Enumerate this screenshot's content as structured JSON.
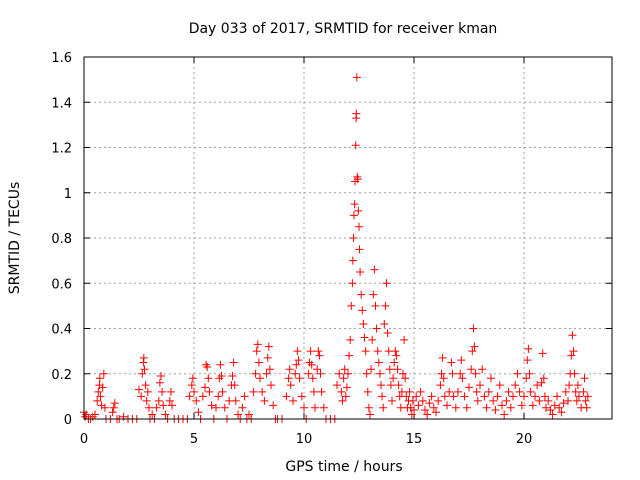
{
  "chart_data": {
    "type": "scatter",
    "title": "Day 033 of 2017, SRMTID for receiver kman",
    "xlabel": "GPS time / hours",
    "ylabel": "SRMTID / TECUs",
    "xlim": [
      0,
      24
    ],
    "ylim": [
      0,
      1.6
    ],
    "xticks": [
      0,
      5,
      10,
      15,
      20
    ],
    "xtick_labels": [
      "0",
      "5",
      "10",
      "15",
      "20"
    ],
    "yticks": [
      0,
      0.2,
      0.4,
      0.6,
      0.8,
      1.0,
      1.2,
      1.4,
      1.6
    ],
    "ytick_labels": [
      "0",
      "0.2",
      "0.4",
      "0.6",
      "0.8",
      "1",
      "1.2",
      "1.4",
      "1.6"
    ],
    "grid": true,
    "marker": "plus",
    "color": "#ff0000",
    "series": [
      {
        "name": "SRMTID",
        "points": [
          [
            0.0,
            0.03
          ],
          [
            0.05,
            0.01
          ],
          [
            0.1,
            0.02
          ],
          [
            0.2,
            0.0
          ],
          [
            0.3,
            0.0
          ],
          [
            0.4,
            0.01
          ],
          [
            0.5,
            0.02
          ],
          [
            0.6,
            0.08
          ],
          [
            0.65,
            0.12
          ],
          [
            0.7,
            0.15
          ],
          [
            0.72,
            0.18
          ],
          [
            0.75,
            0.1
          ],
          [
            0.8,
            0.06
          ],
          [
            0.85,
            0.14
          ],
          [
            0.9,
            0.2
          ],
          [
            0.95,
            0.05
          ],
          [
            1.0,
            0.0
          ],
          [
            1.2,
            0.0
          ],
          [
            1.3,
            0.03
          ],
          [
            1.35,
            0.05
          ],
          [
            1.4,
            0.07
          ],
          [
            1.5,
            0.0
          ],
          [
            1.6,
            0.0
          ],
          [
            1.8,
            0.01
          ],
          [
            2.0,
            0.0
          ],
          [
            2.2,
            0.0
          ],
          [
            2.4,
            0.0
          ],
          [
            2.5,
            0.13
          ],
          [
            2.6,
            0.1
          ],
          [
            2.65,
            0.2
          ],
          [
            2.7,
            0.25
          ],
          [
            2.72,
            0.27
          ],
          [
            2.75,
            0.22
          ],
          [
            2.8,
            0.15
          ],
          [
            2.85,
            0.08
          ],
          [
            2.9,
            0.12
          ],
          [
            2.95,
            0.05
          ],
          [
            3.0,
            0.0
          ],
          [
            3.1,
            0.02
          ],
          [
            3.2,
            0.0
          ],
          [
            3.3,
            0.05
          ],
          [
            3.4,
            0.08
          ],
          [
            3.45,
            0.16
          ],
          [
            3.5,
            0.19
          ],
          [
            3.55,
            0.12
          ],
          [
            3.6,
            0.06
          ],
          [
            3.7,
            0.02
          ],
          [
            3.8,
            0.0
          ],
          [
            3.9,
            0.08
          ],
          [
            3.95,
            0.12
          ],
          [
            4.0,
            0.06
          ],
          [
            4.1,
            0.0
          ],
          [
            4.3,
            0.0
          ],
          [
            4.5,
            0.0
          ],
          [
            4.7,
            0.0
          ],
          [
            4.8,
            0.1
          ],
          [
            4.9,
            0.15
          ],
          [
            4.95,
            0.18
          ],
          [
            5.0,
            0.12
          ],
          [
            5.1,
            0.08
          ],
          [
            5.2,
            0.03
          ],
          [
            5.3,
            0.0
          ],
          [
            5.4,
            0.1
          ],
          [
            5.5,
            0.14
          ],
          [
            5.55,
            0.24
          ],
          [
            5.6,
            0.23
          ],
          [
            5.65,
            0.18
          ],
          [
            5.7,
            0.12
          ],
          [
            5.8,
            0.06
          ],
          [
            5.9,
            0.0
          ],
          [
            6.0,
            0.05
          ],
          [
            6.1,
            0.1
          ],
          [
            6.15,
            0.18
          ],
          [
            6.2,
            0.24
          ],
          [
            6.25,
            0.19
          ],
          [
            6.3,
            0.12
          ],
          [
            6.4,
            0.05
          ],
          [
            6.5,
            0.0
          ],
          [
            6.6,
            0.08
          ],
          [
            6.7,
            0.15
          ],
          [
            6.75,
            0.19
          ],
          [
            6.8,
            0.25
          ],
          [
            6.85,
            0.15
          ],
          [
            6.9,
            0.08
          ],
          [
            7.0,
            0.02
          ],
          [
            7.1,
            0.0
          ],
          [
            7.2,
            0.05
          ],
          [
            7.3,
            0.1
          ],
          [
            7.4,
            0.0
          ],
          [
            7.5,
            0.02
          ],
          [
            7.6,
            0.0
          ],
          [
            7.7,
            0.12
          ],
          [
            7.8,
            0.2
          ],
          [
            7.85,
            0.3
          ],
          [
            7.9,
            0.33
          ],
          [
            7.95,
            0.25
          ],
          [
            8.0,
            0.18
          ],
          [
            8.1,
            0.12
          ],
          [
            8.2,
            0.08
          ],
          [
            8.3,
            0.2
          ],
          [
            8.35,
            0.27
          ],
          [
            8.4,
            0.32
          ],
          [
            8.45,
            0.22
          ],
          [
            8.5,
            0.15
          ],
          [
            8.6,
            0.06
          ],
          [
            8.7,
            0.0
          ],
          [
            8.8,
            0.0
          ],
          [
            9.0,
            0.0
          ],
          [
            9.2,
            0.1
          ],
          [
            9.3,
            0.18
          ],
          [
            9.35,
            0.22
          ],
          [
            9.4,
            0.15
          ],
          [
            9.5,
            0.08
          ],
          [
            9.6,
            0.2
          ],
          [
            9.65,
            0.24
          ],
          [
            9.7,
            0.3
          ],
          [
            9.75,
            0.26
          ],
          [
            9.8,
            0.18
          ],
          [
            9.9,
            0.1
          ],
          [
            10.0,
            0.05
          ],
          [
            10.1,
            0.0
          ],
          [
            10.2,
            0.2
          ],
          [
            10.25,
            0.25
          ],
          [
            10.3,
            0.3
          ],
          [
            10.35,
            0.24
          ],
          [
            10.4,
            0.18
          ],
          [
            10.45,
            0.12
          ],
          [
            10.5,
            0.05
          ],
          [
            10.6,
            0.22
          ],
          [
            10.65,
            0.3
          ],
          [
            10.7,
            0.28
          ],
          [
            10.75,
            0.2
          ],
          [
            10.8,
            0.12
          ],
          [
            10.9,
            0.05
          ],
          [
            11.0,
            0.0
          ],
          [
            11.2,
            0.0
          ],
          [
            11.4,
            0.0
          ],
          [
            11.5,
            0.15
          ],
          [
            11.6,
            0.2
          ],
          [
            11.7,
            0.12
          ],
          [
            11.75,
            0.08
          ],
          [
            11.8,
            0.18
          ],
          [
            11.85,
            0.22
          ],
          [
            11.9,
            0.1
          ],
          [
            11.95,
            0.14
          ],
          [
            12.0,
            0.2
          ],
          [
            12.05,
            0.28
          ],
          [
            12.1,
            0.35
          ],
          [
            12.15,
            0.5
          ],
          [
            12.2,
            0.6
          ],
          [
            12.22,
            0.7
          ],
          [
            12.25,
            0.8
          ],
          [
            12.27,
            0.9
          ],
          [
            12.3,
            0.95
          ],
          [
            12.32,
            1.05
          ],
          [
            12.35,
            1.21
          ],
          [
            12.37,
            1.33
          ],
          [
            12.38,
            1.35
          ],
          [
            12.4,
            1.51
          ],
          [
            12.42,
            1.07
          ],
          [
            12.45,
            1.06
          ],
          [
            12.47,
            0.92
          ],
          [
            12.5,
            0.85
          ],
          [
            12.52,
            0.75
          ],
          [
            12.55,
            0.65
          ],
          [
            12.6,
            0.55
          ],
          [
            12.65,
            0.48
          ],
          [
            12.7,
            0.42
          ],
          [
            12.75,
            0.36
          ],
          [
            12.8,
            0.3
          ],
          [
            12.85,
            0.2
          ],
          [
            12.9,
            0.12
          ],
          [
            12.95,
            0.05
          ],
          [
            13.0,
            0.02
          ],
          [
            13.05,
            0.22
          ],
          [
            13.1,
            0.35
          ],
          [
            13.15,
            0.55
          ],
          [
            13.2,
            0.66
          ],
          [
            13.25,
            0.5
          ],
          [
            13.3,
            0.4
          ],
          [
            13.35,
            0.3
          ],
          [
            13.4,
            0.25
          ],
          [
            13.45,
            0.2
          ],
          [
            13.5,
            0.15
          ],
          [
            13.55,
            0.1
          ],
          [
            13.6,
            0.05
          ],
          [
            13.65,
            0.42
          ],
          [
            13.7,
            0.5
          ],
          [
            13.75,
            0.6
          ],
          [
            13.8,
            0.38
          ],
          [
            13.85,
            0.3
          ],
          [
            13.9,
            0.22
          ],
          [
            13.95,
            0.15
          ],
          [
            14.0,
            0.08
          ],
          [
            14.05,
            0.18
          ],
          [
            14.1,
            0.25
          ],
          [
            14.15,
            0.3
          ],
          [
            14.2,
            0.28
          ],
          [
            14.25,
            0.22
          ],
          [
            14.3,
            0.15
          ],
          [
            14.35,
            0.1
          ],
          [
            14.4,
            0.05
          ],
          [
            14.45,
            0.12
          ],
          [
            14.5,
            0.2
          ],
          [
            14.55,
            0.35
          ],
          [
            14.6,
            0.18
          ],
          [
            14.65,
            0.1
          ],
          [
            14.7,
            0.05
          ],
          [
            14.75,
            0.08
          ],
          [
            14.8,
            0.12
          ],
          [
            14.85,
            0.05
          ],
          [
            14.9,
            0.02
          ],
          [
            14.95,
            0.08
          ],
          [
            15.0,
            0.04
          ],
          [
            15.1,
            0.1
          ],
          [
            15.2,
            0.06
          ],
          [
            15.3,
            0.12
          ],
          [
            15.4,
            0.08
          ],
          [
            15.5,
            0.04
          ],
          [
            15.6,
            0.02
          ],
          [
            15.7,
            0.07
          ],
          [
            15.8,
            0.1
          ],
          [
            15.9,
            0.05
          ],
          [
            16.0,
            0.03
          ],
          [
            16.1,
            0.08
          ],
          [
            16.2,
            0.15
          ],
          [
            16.25,
            0.2
          ],
          [
            16.3,
            0.27
          ],
          [
            16.35,
            0.18
          ],
          [
            16.4,
            0.1
          ],
          [
            16.5,
            0.06
          ],
          [
            16.6,
            0.12
          ],
          [
            16.7,
            0.25
          ],
          [
            16.75,
            0.2
          ],
          [
            16.8,
            0.1
          ],
          [
            16.9,
            0.05
          ],
          [
            17.0,
            0.12
          ],
          [
            17.1,
            0.2
          ],
          [
            17.15,
            0.26
          ],
          [
            17.2,
            0.18
          ],
          [
            17.3,
            0.1
          ],
          [
            17.4,
            0.05
          ],
          [
            17.5,
            0.14
          ],
          [
            17.6,
            0.22
          ],
          [
            17.65,
            0.3
          ],
          [
            17.7,
            0.4
          ],
          [
            17.75,
            0.32
          ],
          [
            17.8,
            0.2
          ],
          [
            17.85,
            0.12
          ],
          [
            17.9,
            0.08
          ],
          [
            18.0,
            0.15
          ],
          [
            18.1,
            0.22
          ],
          [
            18.2,
            0.1
          ],
          [
            18.3,
            0.05
          ],
          [
            18.4,
            0.12
          ],
          [
            18.5,
            0.18
          ],
          [
            18.6,
            0.08
          ],
          [
            18.7,
            0.04
          ],
          [
            18.8,
            0.1
          ],
          [
            18.9,
            0.15
          ],
          [
            19.0,
            0.06
          ],
          [
            19.1,
            0.02
          ],
          [
            19.2,
            0.08
          ],
          [
            19.3,
            0.12
          ],
          [
            19.4,
            0.05
          ],
          [
            19.5,
            0.1
          ],
          [
            19.6,
            0.15
          ],
          [
            19.7,
            0.2
          ],
          [
            19.8,
            0.12
          ],
          [
            19.9,
            0.06
          ],
          [
            20.0,
            0.1
          ],
          [
            20.1,
            0.18
          ],
          [
            20.15,
            0.26
          ],
          [
            20.2,
            0.31
          ],
          [
            20.25,
            0.2
          ],
          [
            20.3,
            0.12
          ],
          [
            20.4,
            0.06
          ],
          [
            20.5,
            0.1
          ],
          [
            20.6,
            0.15
          ],
          [
            20.7,
            0.08
          ],
          [
            20.8,
            0.16
          ],
          [
            20.85,
            0.29
          ],
          [
            20.9,
            0.18
          ],
          [
            20.95,
            0.1
          ],
          [
            21.0,
            0.05
          ],
          [
            21.1,
            0.08
          ],
          [
            21.2,
            0.04
          ],
          [
            21.3,
            0.02
          ],
          [
            21.4,
            0.06
          ],
          [
            21.5,
            0.1
          ],
          [
            21.6,
            0.05
          ],
          [
            21.7,
            0.03
          ],
          [
            21.8,
            0.07
          ],
          [
            21.9,
            0.12
          ],
          [
            22.0,
            0.08
          ],
          [
            22.05,
            0.15
          ],
          [
            22.1,
            0.2
          ],
          [
            22.15,
            0.28
          ],
          [
            22.2,
            0.37
          ],
          [
            22.25,
            0.3
          ],
          [
            22.3,
            0.2
          ],
          [
            22.35,
            0.12
          ],
          [
            22.4,
            0.08
          ],
          [
            22.45,
            0.15
          ],
          [
            22.5,
            0.1
          ],
          [
            22.6,
            0.05
          ],
          [
            22.7,
            0.12
          ],
          [
            22.75,
            0.18
          ],
          [
            22.8,
            0.08
          ],
          [
            22.85,
            0.05
          ],
          [
            22.9,
            0.1
          ]
        ]
      }
    ]
  }
}
